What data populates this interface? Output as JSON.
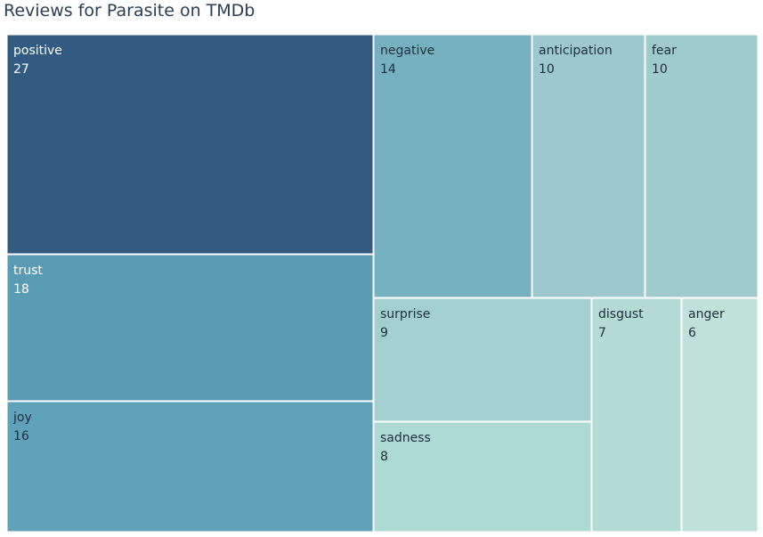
{
  "chart_data": {
    "type": "treemap",
    "title": "Reviews for Parasite on TMDb",
    "items": [
      {
        "label": "positive",
        "value": 27,
        "color": "#335b82",
        "text_color": "#ffffff"
      },
      {
        "label": "trust",
        "value": 18,
        "color": "#5a9bb4",
        "text_color": "#ffffff"
      },
      {
        "label": "joy",
        "value": 16,
        "color": "#5fa2ba",
        "text_color": "#1d2d3c"
      },
      {
        "label": "negative",
        "value": 14,
        "color": "#76b1c1",
        "text_color": "#1d2d3c"
      },
      {
        "label": "anticipation",
        "value": 10,
        "color": "#9dc8cd",
        "text_color": "#1d2d3c"
      },
      {
        "label": "fear",
        "value": 10,
        "color": "#9fcbcd",
        "text_color": "#1d2d3c"
      },
      {
        "label": "surprise",
        "value": 9,
        "color": "#a4cfd0",
        "text_color": "#1d2d3c"
      },
      {
        "label": "sadness",
        "value": 8,
        "color": "#addad4",
        "text_color": "#1d2d3c"
      },
      {
        "label": "disgust",
        "value": 7,
        "color": "#b3dbd3",
        "text_color": "#1d2d3c"
      },
      {
        "label": "anger",
        "value": 6,
        "color": "#bfe1d9",
        "text_color": "#1d2d3c"
      }
    ]
  }
}
